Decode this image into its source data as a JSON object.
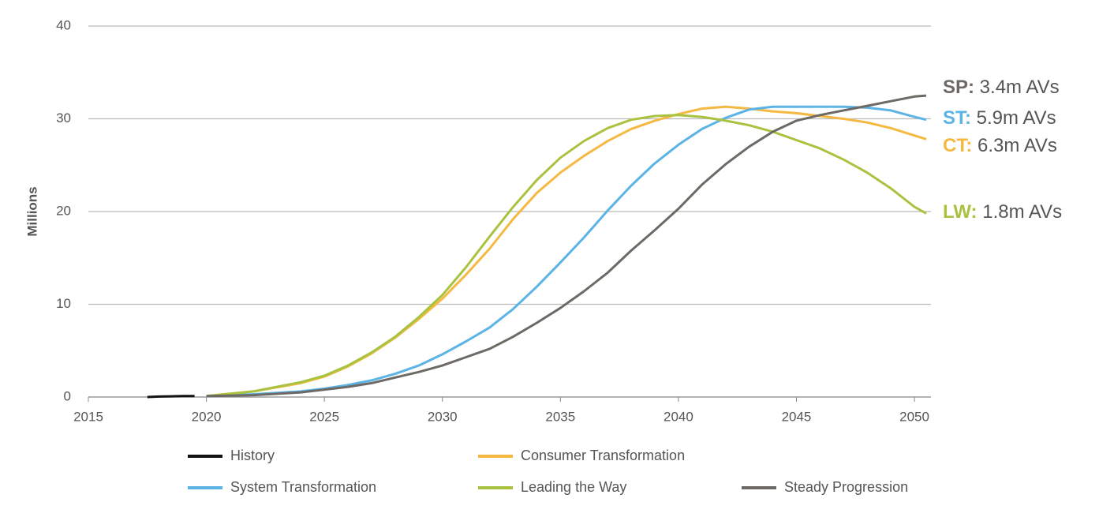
{
  "chart_data": {
    "type": "line",
    "y_label": "Millions",
    "xlim": [
      2015,
      2050.7
    ],
    "xticks": [
      2015,
      2020,
      2025,
      2030,
      2035,
      2040,
      2045,
      2050
    ],
    "ylim": [
      0,
      40
    ],
    "yticks": [
      0,
      10,
      20,
      30,
      40
    ],
    "grid": true,
    "series": [
      {
        "name": "History",
        "color": "#111111",
        "x": [
          2017.5,
          2018,
          2018.5,
          2019,
          2019.5
        ],
        "values": [
          0,
          0.05,
          0.08,
          0.1,
          0.1
        ]
      },
      {
        "name": "Consumer Transformation",
        "color": "#f5b942",
        "x": [
          2020,
          2022,
          2024,
          2025,
          2026,
          2027,
          2028,
          2029,
          2030,
          2031,
          2032,
          2033,
          2034,
          2035,
          2036,
          2037,
          2038,
          2039,
          2040,
          2041,
          2042,
          2043,
          2044,
          2045,
          2046,
          2047,
          2048,
          2049,
          2050,
          2050.5
        ],
        "values": [
          0.1,
          0.6,
          1.5,
          2.2,
          3.3,
          4.7,
          6.4,
          8.4,
          10.6,
          13.2,
          16,
          19.2,
          22,
          24.2,
          26,
          27.6,
          28.9,
          29.8,
          30.5,
          31.1,
          31.3,
          31.1,
          30.8,
          30.6,
          30.3,
          30,
          29.6,
          29,
          28.2,
          27.8
        ]
      },
      {
        "name": "System Transformation",
        "color": "#5bb4e5",
        "x": [
          2020,
          2022,
          2024,
          2025,
          2026,
          2027,
          2028,
          2029,
          2030,
          2031,
          2032,
          2033,
          2034,
          2035,
          2036,
          2037,
          2038,
          2039,
          2040,
          2041,
          2042,
          2043,
          2044,
          2045,
          2046,
          2047,
          2048,
          2049,
          2050,
          2050.5
        ],
        "values": [
          0.1,
          0.3,
          0.6,
          0.9,
          1.3,
          1.8,
          2.5,
          3.4,
          4.6,
          6,
          7.5,
          9.5,
          11.9,
          14.5,
          17.2,
          20.1,
          22.8,
          25.2,
          27.2,
          28.9,
          30.1,
          31,
          31.3,
          31.3,
          31.3,
          31.3,
          31.2,
          30.9,
          30.2,
          29.9
        ]
      },
      {
        "name": "Leading the Way",
        "color": "#a9c23f",
        "x": [
          2020,
          2022,
          2024,
          2025,
          2026,
          2027,
          2028,
          2029,
          2030,
          2031,
          2032,
          2033,
          2034,
          2035,
          2036,
          2037,
          2038,
          2039,
          2040,
          2041,
          2042,
          2043,
          2044,
          2045,
          2046,
          2047,
          2048,
          2049,
          2050,
          2050.5
        ],
        "values": [
          0.1,
          0.6,
          1.6,
          2.3,
          3.4,
          4.8,
          6.5,
          8.6,
          11,
          14,
          17.3,
          20.5,
          23.4,
          25.8,
          27.6,
          29,
          29.9,
          30.3,
          30.4,
          30.2,
          29.8,
          29.3,
          28.6,
          27.7,
          26.8,
          25.6,
          24.2,
          22.5,
          20.5,
          19.8
        ]
      },
      {
        "name": "Steady Progression",
        "color": "#6d6a66",
        "x": [
          2020,
          2022,
          2024,
          2025,
          2026,
          2027,
          2028,
          2029,
          2030,
          2031,
          2032,
          2033,
          2034,
          2035,
          2036,
          2037,
          2038,
          2039,
          2040,
          2041,
          2042,
          2043,
          2044,
          2045,
          2046,
          2047,
          2048,
          2049,
          2050,
          2050.5
        ],
        "values": [
          0.1,
          0.2,
          0.5,
          0.8,
          1.1,
          1.5,
          2.1,
          2.7,
          3.4,
          4.3,
          5.2,
          6.5,
          8,
          9.6,
          11.4,
          13.4,
          15.8,
          18,
          20.3,
          22.9,
          25.1,
          27,
          28.6,
          29.8,
          30.4,
          30.9,
          31.4,
          31.9,
          32.4,
          32.5
        ]
      }
    ],
    "annotations": [
      {
        "label": "SP:",
        "text": " 3.4m AVs",
        "color": "#6d6a66"
      },
      {
        "label": "ST:",
        "text": " 5.9m AVs",
        "color": "#5bb4e5"
      },
      {
        "label": "CT:",
        "text": " 6.3m AVs",
        "color": "#f5b942"
      },
      {
        "label": "LW:",
        "text": " 1.8m AVs",
        "color": "#a9c23f"
      }
    ]
  }
}
